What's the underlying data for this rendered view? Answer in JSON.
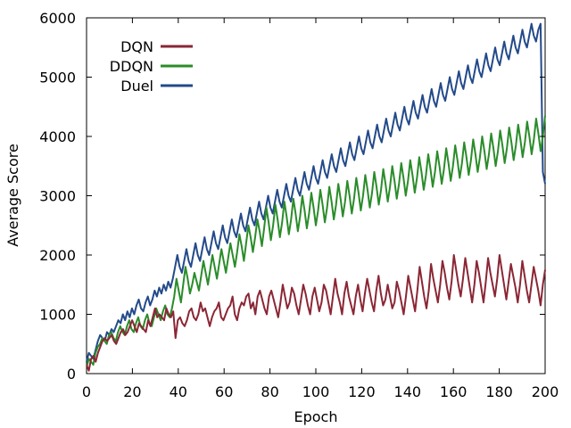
{
  "chart_data": {
    "type": "line",
    "title": "",
    "xlabel": "Epoch",
    "ylabel": "Average Score",
    "xlim": [
      0,
      200
    ],
    "ylim": [
      0,
      6000
    ],
    "xticks": [
      0,
      20,
      40,
      60,
      80,
      100,
      120,
      140,
      160,
      180,
      200
    ],
    "yticks": [
      0,
      1000,
      2000,
      3000,
      4000,
      5000,
      6000
    ],
    "grid": false,
    "legend_position": "top-left",
    "series": [
      {
        "name": "DQN",
        "color": "#8b2635",
        "values": [
          150,
          50,
          250,
          300,
          200,
          350,
          450,
          550,
          600,
          550,
          600,
          650,
          550,
          500,
          600,
          700,
          750,
          650,
          700,
          800,
          900,
          800,
          700,
          850,
          800,
          750,
          700,
          900,
          800,
          950,
          1100,
          950,
          1000,
          950,
          900,
          1100,
          1000,
          950,
          1050,
          600,
          900,
          950,
          850,
          800,
          900,
          1050,
          1100,
          950,
          900,
          1000,
          1200,
          1050,
          1100,
          950,
          800,
          950,
          1050,
          1100,
          1200,
          950,
          900,
          1000,
          1100,
          1150,
          1300,
          1000,
          900,
          1100,
          1200,
          1150,
          1300,
          1350,
          1100,
          1200,
          1000,
          1300,
          1400,
          1250,
          1100,
          1000,
          1300,
          1400,
          1250,
          1100,
          950,
          1200,
          1500,
          1300,
          1100,
          1200,
          1450,
          1350,
          1150,
          1000,
          1250,
          1500,
          1350,
          1150,
          1000,
          1300,
          1450,
          1250,
          1050,
          1200,
          1500,
          1400,
          1200,
          1000,
          1300,
          1600,
          1350,
          1200,
          1000,
          1350,
          1550,
          1300,
          1150,
          1000,
          1300,
          1500,
          1250,
          1050,
          1350,
          1600,
          1400,
          1200,
          1050,
          1400,
          1650,
          1350,
          1150,
          1250,
          1500,
          1300,
          1100,
          1200,
          1550,
          1400,
          1200,
          1000,
          1300,
          1650,
          1450,
          1250,
          1050,
          1400,
          1800,
          1550,
          1300,
          1100,
          1400,
          1850,
          1600,
          1400,
          1200,
          1500,
          1900,
          1700,
          1450,
          1250,
          1550,
          2000,
          1750,
          1500,
          1300,
          1600,
          1950,
          1700,
          1450,
          1200,
          1500,
          1900,
          1700,
          1450,
          1200,
          1550,
          1950,
          1700,
          1500,
          1300,
          1600,
          2000,
          1750,
          1500,
          1250,
          1550,
          1850,
          1650,
          1450,
          1200,
          1500,
          1900,
          1650,
          1400,
          1200,
          1500,
          1800,
          1600,
          1400,
          1150,
          1500,
          1750
        ],
        "values_note": ""
      },
      {
        "name": "DDQN",
        "color": "#2a8c2a",
        "values": [
          100,
          250,
          200,
          150,
          350,
          450,
          500,
          600,
          550,
          500,
          650,
          700,
          600,
          550,
          700,
          800,
          700,
          650,
          800,
          900,
          750,
          700,
          850,
          950,
          800,
          750,
          900,
          1000,
          850,
          800,
          950,
          1100,
          1000,
          900,
          1050,
          1150,
          1000,
          950,
          1100,
          1300,
          1600,
          1400,
          1200,
          1500,
          1800,
          1600,
          1350,
          1500,
          1700,
          1550,
          1400,
          1650,
          1900,
          1700,
          1500,
          1750,
          2000,
          1800,
          1600,
          1850,
          2100,
          1900,
          1700,
          1950,
          2200,
          2000,
          1800,
          2050,
          2350,
          2150,
          1900,
          2200,
          2500,
          2300,
          2050,
          2300,
          2600,
          2400,
          2150,
          2450,
          2800,
          2550,
          2250,
          2500,
          2850,
          2600,
          2300,
          2550,
          2900,
          2650,
          2350,
          2600,
          2950,
          2700,
          2400,
          2650,
          3000,
          2750,
          2450,
          2700,
          3050,
          2800,
          2500,
          2750,
          3100,
          2850,
          2550,
          2800,
          3150,
          2900,
          2600,
          2850,
          3200,
          2950,
          2650,
          2900,
          3250,
          3000,
          2700,
          2950,
          3300,
          3050,
          2750,
          3000,
          3350,
          3100,
          2800,
          3050,
          3400,
          3150,
          2850,
          3100,
          3450,
          3200,
          2900,
          3150,
          3500,
          3250,
          2950,
          3200,
          3550,
          3300,
          3000,
          3250,
          3600,
          3350,
          3050,
          3300,
          3650,
          3400,
          3100,
          3350,
          3700,
          3450,
          3150,
          3400,
          3750,
          3500,
          3200,
          3450,
          3800,
          3550,
          3250,
          3500,
          3850,
          3600,
          3300,
          3550,
          3900,
          3650,
          3350,
          3600,
          3950,
          3700,
          3400,
          3650,
          4000,
          3750,
          3450,
          3700,
          4050,
          3800,
          3500,
          3750,
          4100,
          3850,
          3550,
          3800,
          4150,
          3900,
          3600,
          3850,
          4200,
          3950,
          3650,
          3900,
          4250,
          4000,
          3700,
          3950,
          4300,
          4050,
          3750,
          4000,
          4350
        ],
        "values_note": ""
      },
      {
        "name": "Duel",
        "color": "#234a8a",
        "values": [
          200,
          350,
          300,
          250,
          400,
          550,
          650,
          600,
          550,
          700,
          650,
          750,
          700,
          800,
          900,
          850,
          1000,
          900,
          1050,
          950,
          1100,
          1000,
          1150,
          1250,
          1100,
          1050,
          1200,
          1300,
          1150,
          1250,
          1400,
          1300,
          1450,
          1350,
          1500,
          1400,
          1550,
          1450,
          1600,
          1800,
          2000,
          1800,
          1700,
          1900,
          2100,
          1900,
          1800,
          2000,
          2200,
          2000,
          1900,
          2100,
          2300,
          2100,
          2000,
          2200,
          2400,
          2200,
          2100,
          2300,
          2500,
          2300,
          2200,
          2400,
          2600,
          2400,
          2300,
          2500,
          2700,
          2500,
          2400,
          2600,
          2800,
          2600,
          2500,
          2700,
          2900,
          2700,
          2600,
          2800,
          3000,
          2800,
          2700,
          2900,
          3100,
          2900,
          2800,
          3000,
          3200,
          3000,
          2900,
          3100,
          3300,
          3100,
          3000,
          3200,
          3400,
          3200,
          3100,
          3300,
          3500,
          3300,
          3200,
          3400,
          3600,
          3400,
          3300,
          3500,
          3700,
          3500,
          3400,
          3600,
          3800,
          3600,
          3500,
          3700,
          3900,
          3700,
          3600,
          3800,
          4000,
          3800,
          3700,
          3900,
          4100,
          3900,
          3800,
          4000,
          4200,
          4000,
          3900,
          4100,
          4300,
          4100,
          4000,
          4200,
          4400,
          4200,
          4100,
          4300,
          4500,
          4300,
          4200,
          4400,
          4600,
          4400,
          4300,
          4500,
          4700,
          4500,
          4400,
          4600,
          4800,
          4600,
          4500,
          4700,
          4900,
          4700,
          4600,
          4800,
          5000,
          4800,
          4700,
          4900,
          5100,
          4900,
          4800,
          5000,
          5200,
          5000,
          4900,
          5100,
          5300,
          5100,
          5000,
          5200,
          5400,
          5200,
          5100,
          5300,
          5500,
          5300,
          5200,
          5400,
          5600,
          5400,
          5300,
          5500,
          5700,
          5500,
          5400,
          5600,
          5800,
          5600,
          5500,
          5700,
          5900,
          5700,
          5600,
          5800,
          5900,
          3400,
          3200
        ],
        "values_note": ""
      }
    ]
  }
}
